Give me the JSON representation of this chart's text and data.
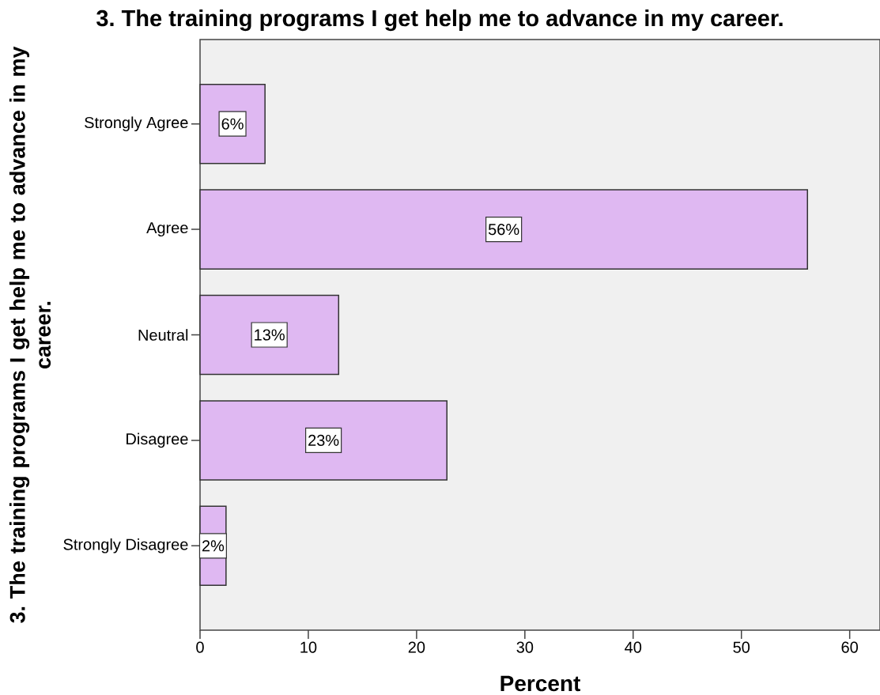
{
  "chart_data": {
    "type": "bar",
    "orientation": "horizontal",
    "title": "3. The training programs I get help me to advance in my career.",
    "xlabel": "Percent",
    "ylabel": "3. The training programs I get help me to advance in my career.",
    "categories": [
      "Strongly Agree",
      "Agree",
      "Neutral",
      "Disagree",
      "Strongly Disagree"
    ],
    "values": [
      6.0,
      56.1,
      12.8,
      22.8,
      2.4
    ],
    "value_labels": [
      "6%",
      "56%",
      "13%",
      "23%",
      "2%"
    ],
    "color": "#dfb8f2",
    "xlim": [
      0,
      62.8
    ],
    "xticks": [
      0,
      10,
      20,
      30,
      40,
      50,
      60
    ]
  }
}
